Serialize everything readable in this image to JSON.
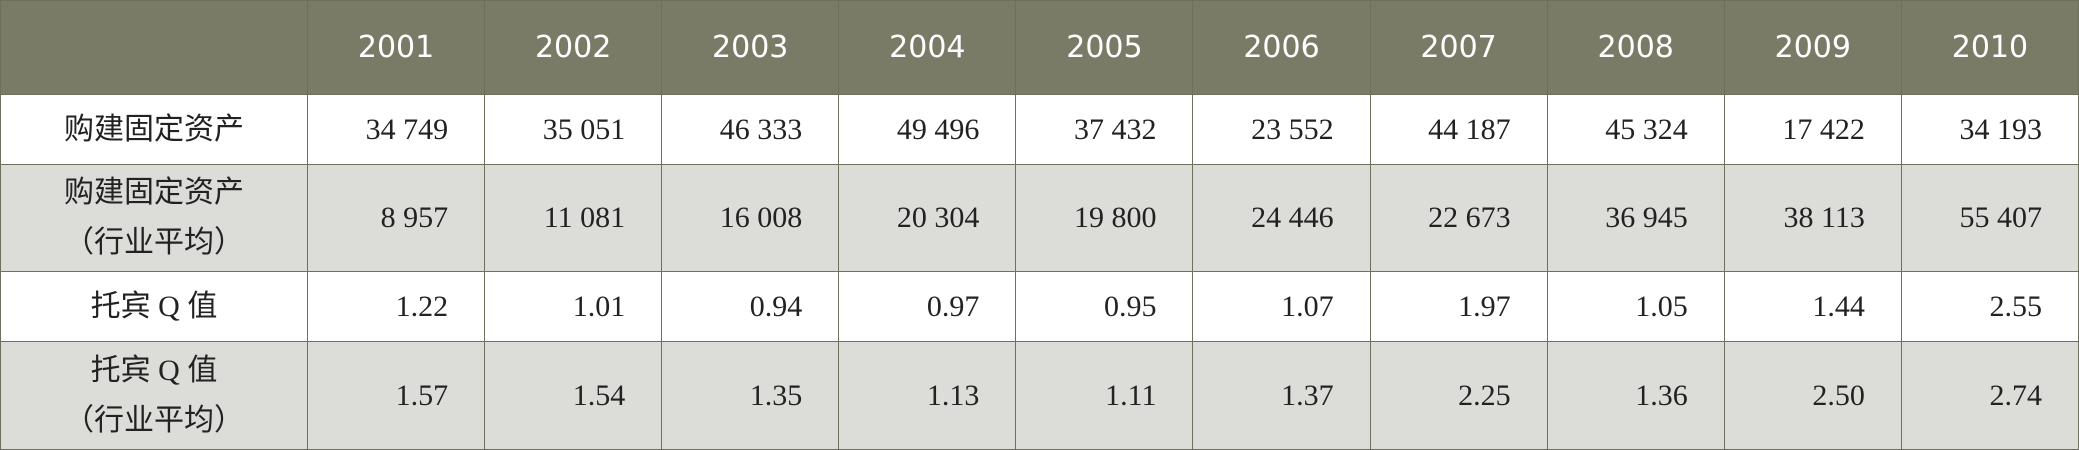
{
  "table": {
    "header": [
      "2001",
      "2002",
      "2003",
      "2004",
      "2005",
      "2006",
      "2007",
      "2008",
      "2009",
      "2010"
    ],
    "rows": [
      {
        "label": [
          "购建固定资产"
        ],
        "values": [
          "34 749",
          "35 051",
          "46 333",
          "49 496",
          "37 432",
          "23 552",
          "44 187",
          "45 324",
          "17 422",
          "34 193"
        ]
      },
      {
        "label": [
          "购建固定资产",
          "（行业平均）"
        ],
        "values": [
          "8 957",
          "11 081",
          "16 008",
          "20 304",
          "19 800",
          "24 446",
          "22 673",
          "36 945",
          "38 113",
          "55 407"
        ]
      },
      {
        "label": [
          "托宾 Q 值"
        ],
        "values": [
          "1.22",
          "1.01",
          "0.94",
          "0.97",
          "0.95",
          "1.07",
          "1.97",
          "1.05",
          "1.44",
          "2.55"
        ]
      },
      {
        "label": [
          "托宾 Q 值",
          "（行业平均）"
        ],
        "values": [
          "1.57",
          "1.54",
          "1.35",
          "1.13",
          "1.11",
          "1.37",
          "2.25",
          "1.36",
          "2.50",
          "2.74"
        ]
      }
    ]
  }
}
